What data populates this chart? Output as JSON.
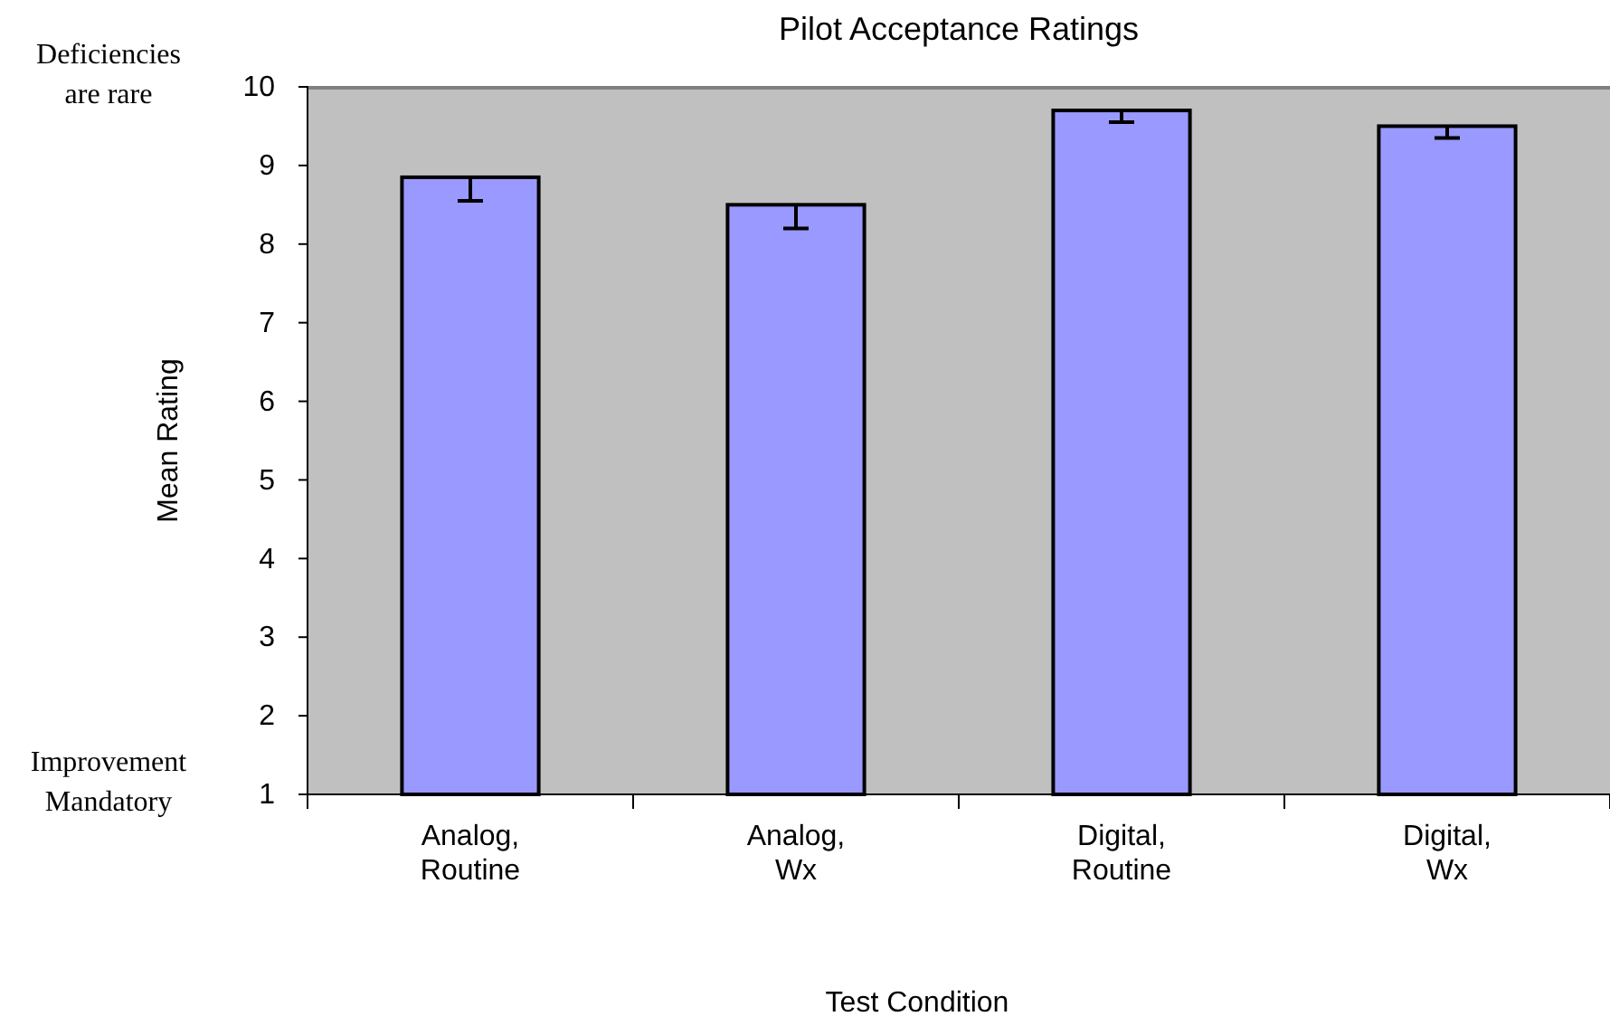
{
  "chart_data": {
    "type": "bar",
    "title": "Pilot Acceptance Ratings",
    "xlabel": "Test Condition",
    "ylabel": "Mean Rating",
    "categories": [
      "Analog, Routine",
      "Analog, Wx",
      "Digital, Routine",
      "Digital, Wx"
    ],
    "values": [
      8.85,
      8.5,
      9.7,
      9.5
    ],
    "errors": [
      [
        8.55,
        8.85
      ],
      [
        8.2,
        8.5
      ],
      [
        9.55,
        9.7
      ],
      [
        9.35,
        9.5
      ]
    ],
    "color": "#9999ff",
    "ylim": [
      1,
      10
    ],
    "yticks": [
      1,
      2,
      3,
      4,
      5,
      6,
      7,
      8,
      9,
      10
    ],
    "grid": false,
    "annotations": [
      "Deficiencies are rare",
      "Improvement Mandatory"
    ]
  }
}
